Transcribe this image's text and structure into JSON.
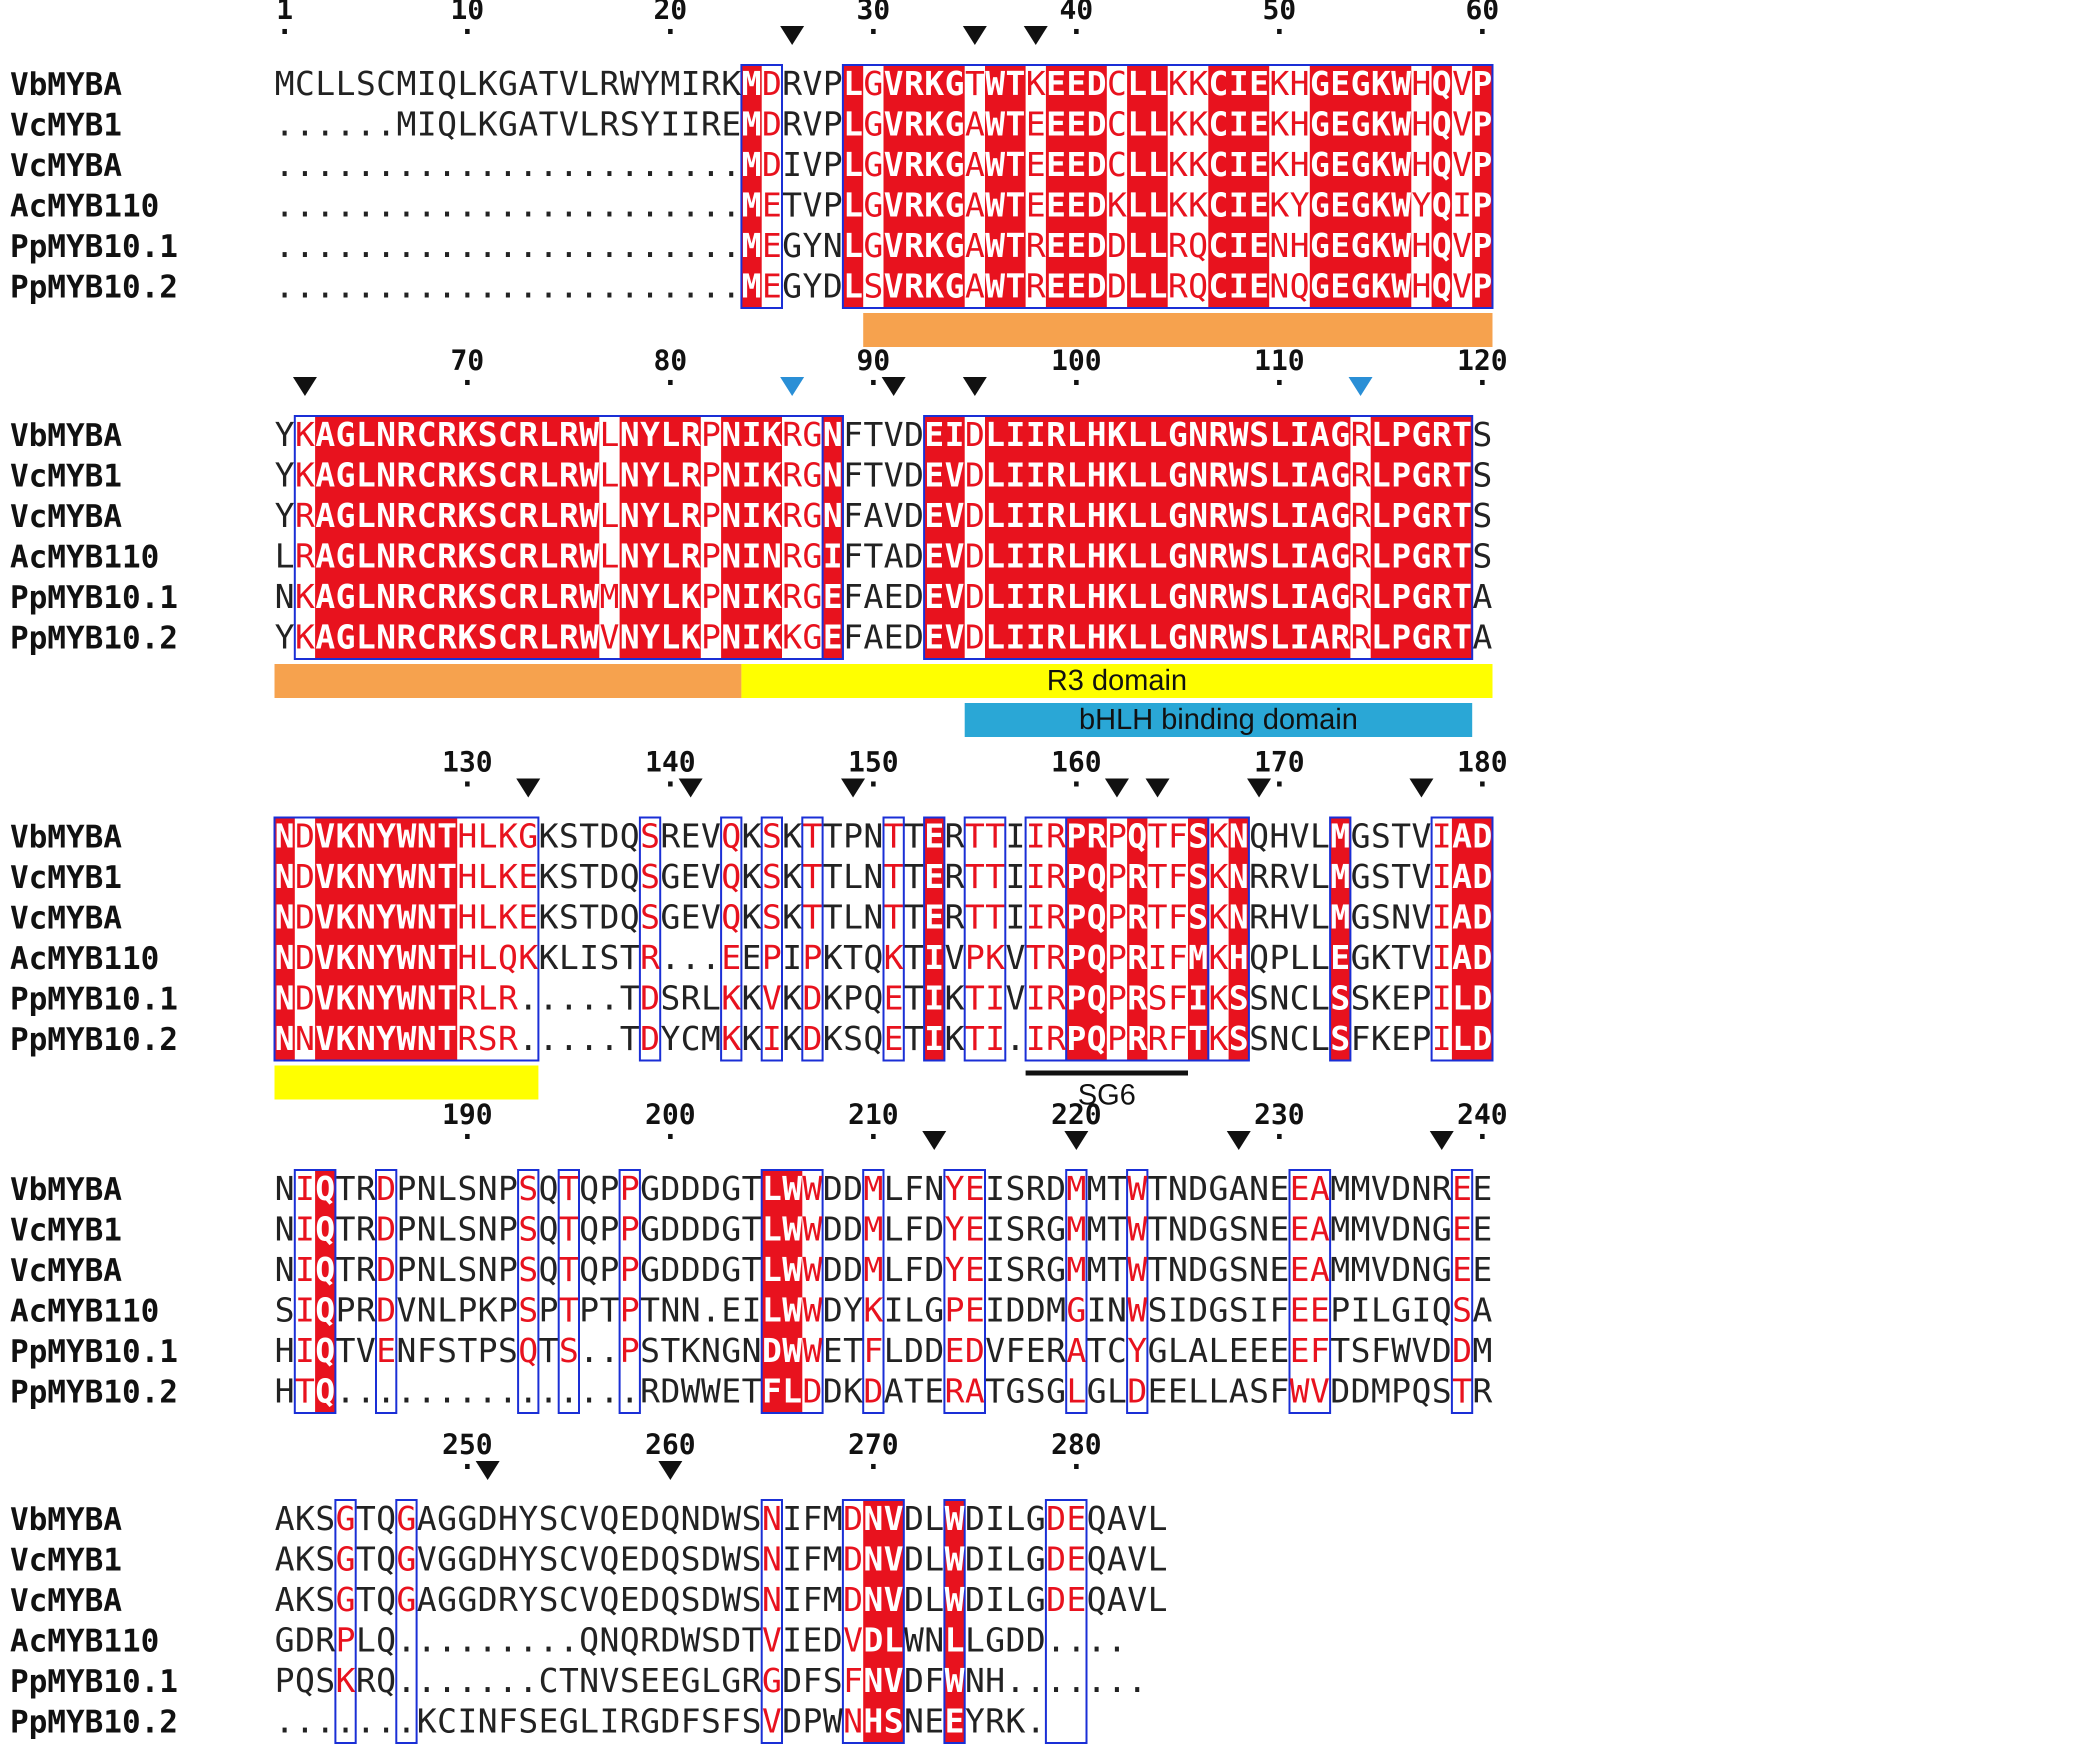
{
  "colors": {
    "conserved_bg": "#e8121e",
    "similar_text": "#e8121e",
    "box": "#1a2fd6",
    "plain_text": "#222222",
    "triangle_black": "#111111",
    "triangle_blue": "#2a8fd6"
  },
  "sequences": [
    {
      "name": "VbMYBA",
      "seq": "MCLLSCMIQLKGATVLRWYMIRKMDRVPLGVRKGTWTKEEDCLLKKCIEKHGEGKWHQVPYKAGLNRCRKSCRLRWLNYLRPNIKRGNFTVDEIDLIIRLHKLLGNRWSLIAGRLPGRTSNDVKNYWNTHLKGKSTDQSREVQKSKTTPNTTERTTIIRPRPQTFSKNQHVLMGSTVIADNIQTRDPNLSNPSQTQPPGDDDGTLWWDDMLFNYEISRDMMTWTNDGANEEAMMVDNREEAKSGTQGAGGDHYSCVQEDQNDWSNIFMDNVDLWDILGDEQAVL"
    },
    {
      "name": "VcMYB1",
      "seq": "......MIQLKGATVLRSYIIREMDRVPLGVRKGAWTEEEDCLLKKCIEKHGEGKWHQVPYKAGLNRCRKSCRLRWLNYLRPNIKRGNFTVDEVDLIIRLHKLLGNRWSLIAGRLPGRTSNDVKNYWNTHLKEKSTDQSGEVQKSKTTLNTTERTTIIRPQPRTFSKNRRVLMGSTVIADNIQTRDPNLSNPSQTQPPGDDDGTLWWDDMLFDYEISRGMMTWTNDGSNEEAMMVDNGEEAKSGTQGVGGDHYSCVQEDQSDWSNIFMDNVDLWDILGDEQAVL"
    },
    {
      "name": "VcMYBA",
      "seq": ".......................MDIVPLGVRKGAWTEEEDCLLKKCIEKHGEGKWHQVPYRAGLNRCRKSCRLRWLNYLRPNIKRGNFAVDEVDLIIRLHKLLGNRWSLIAGRLPGRTSNDVKNYWNTHLKEKSTDQSGEVQKSKTTLNTTERTTIIRPQPRTFSKNRHVLMGSNVIADNIQTRDPNLSNPSQTQPPGDDDGTLWWDDMLFDYEISRGMMTWTNDGSNEEAMMVDNGEEAKSGTQGAGGDRYSCVQEDQSDWSNIFMDNVDLWDILGDEQAVL"
    },
    {
      "name": "AcMYB110",
      "seq": ".......................METVPLGVRKGAWTEEEDKLLKKCIEKYGEGKWYQIPLRAGLNRCRKSCRLRWLNYLRPNINRGIFTADEVDLIIRLHKLLGNRWSLIAGRLPGRTSNDVKNYWNTHLQKKLISTR...EEPIPKTQKTIVPKVTRPQPRIFMKHQPLLEGKTVIADSIQPRDVNLPKPSPTPTPTNN.EILWWDYKILGPEIDDMGINWSIDGSIFEEPILGIQSAGDRPLQ.........QNQRDWSDTVIEDVDLWNLLGDD...."
    },
    {
      "name": "PpMYB10.1",
      "seq": ".......................MEGYNLGVRKGAWTREEDDLLRQCIENHGEGKWHQVPNKAGLNRCRKSCRLRWMNYLKPNIKRGEFAEDEVDLIIRLHKLLGNRWSLIAGRLPGRTANDVKNYWNTRLR.....TDSRLKKVKDKPQETIKTIVIRPQPRSFIKSSNCLSSKEPILDHIQTVENFSTPSQTS..PSTKNGNDWWETFLDDEDVFERATCYGLALEEEEFTSFWVDDMPQSKRQ.......CTNVSEEGLGRGDFSFNVDFWNH......."
    },
    {
      "name": "PpMYB10.2",
      "seq": ".......................MEGYDLSVRKGAWTREEDDLLRQCIENQGEGKWHQVPYKAGLNRCRKSCRLRWVNYLKPNIKKGEFAEDEVDLIIRLHKLLGNRWSLIARRLPGRTANNVKNYWNTRSR.....TDYCMKKIKDKSQETIKTI.IRPQPRRFTKSSNCLSFKEPILDHTQ...............RDWWETFLDDKDATERATGSGLGLDEELLASFWVDDMPQSTR.......KCINFSEGLIRGDFSFSVDPWNHSNEEYRK."
    }
  ],
  "blocks": [
    {
      "start": 1,
      "len": 60,
      "ticks": [
        1,
        10,
        20,
        30,
        40,
        50,
        60
      ],
      "triangles": [
        {
          "pos": 26,
          "c": "black"
        },
        {
          "pos": 35,
          "c": "black"
        },
        {
          "pos": 38,
          "c": "black"
        }
      ],
      "conserved": [
        [
          24,
          24
        ],
        [
          29,
          29
        ],
        [
          31,
          34
        ],
        [
          36,
          37
        ],
        [
          39,
          41
        ],
        [
          43,
          44
        ],
        [
          47,
          49
        ],
        [
          52,
          56
        ],
        [
          58,
          58
        ],
        [
          60,
          60
        ]
      ],
      "boxes": [
        [
          24,
          25
        ],
        [
          29,
          60
        ]
      ],
      "domains": [
        {
          "start": 30,
          "end": 60,
          "color": "#f6a24e",
          "label": "",
          "row": 0
        }
      ]
    },
    {
      "start": 61,
      "len": 60,
      "ticks": [
        70,
        80,
        90,
        100,
        110,
        120
      ],
      "triangles": [
        {
          "pos": 62,
          "c": "black"
        },
        {
          "pos": 86,
          "c": "blue"
        },
        {
          "pos": 91,
          "c": "black"
        },
        {
          "pos": 95,
          "c": "black"
        },
        {
          "pos": 114,
          "c": "blue"
        }
      ],
      "conserved": [
        [
          63,
          76
        ],
        [
          78,
          81
        ],
        [
          83,
          85
        ],
        [
          88,
          88
        ],
        [
          88,
          88
        ],
        [
          93,
          94
        ],
        [
          96,
          113
        ],
        [
          115,
          119
        ]
      ],
      "boxes": [
        [
          62,
          88
        ],
        [
          88,
          88
        ],
        [
          93,
          119
        ]
      ],
      "domains": [
        {
          "start": 61,
          "end": 83,
          "color": "#f6a24e",
          "label": "",
          "row": 0
        },
        {
          "start": 84,
          "end": 120,
          "color": "#ffff00",
          "label": "R3 domain",
          "row": 0
        },
        {
          "start": 95,
          "end": 119,
          "color": "#2aa7d6",
          "label": "bHLH binding domain",
          "row": 1
        }
      ]
    },
    {
      "start": 121,
      "len": 60,
      "ticks": [
        130,
        140,
        150,
        160,
        170,
        180
      ],
      "triangles": [
        {
          "pos": 133,
          "c": "black"
        },
        {
          "pos": 141,
          "c": "black"
        },
        {
          "pos": 149,
          "c": "black"
        },
        {
          "pos": 162,
          "c": "black"
        },
        {
          "pos": 164,
          "c": "black"
        },
        {
          "pos": 169,
          "c": "black"
        },
        {
          "pos": 177,
          "c": "black"
        }
      ],
      "conserved": [
        [
          121,
          121
        ],
        [
          123,
          129
        ],
        [
          153,
          153
        ],
        [
          160,
          161
        ],
        [
          163,
          163
        ],
        [
          166,
          166
        ],
        [
          168,
          168
        ],
        [
          173,
          173
        ],
        [
          179,
          180
        ]
      ],
      "boxes": [
        [
          121,
          133
        ],
        [
          139,
          139
        ],
        [
          143,
          143
        ],
        [
          145,
          145
        ],
        [
          147,
          147
        ],
        [
          151,
          151
        ],
        [
          153,
          153
        ],
        [
          155,
          156
        ],
        [
          158,
          159
        ],
        [
          160,
          166
        ],
        [
          167,
          168
        ],
        [
          173,
          173
        ],
        [
          178,
          180
        ]
      ],
      "domains": [
        {
          "start": 121,
          "end": 133,
          "color": "#ffff00",
          "label": "",
          "row": 0
        }
      ],
      "underline": {
        "start": 158,
        "end": 165,
        "label": "SG6"
      }
    },
    {
      "start": 181,
      "len": 60,
      "ticks": [
        190,
        200,
        210,
        220,
        230,
        240
      ],
      "triangles": [
        {
          "pos": 213,
          "c": "black"
        },
        {
          "pos": 220,
          "c": "black"
        },
        {
          "pos": 228,
          "c": "black"
        },
        {
          "pos": 238,
          "c": "black"
        }
      ],
      "conserved": [
        [
          183,
          183
        ],
        [
          205,
          206
        ]
      ],
      "boxes": [
        [
          182,
          183
        ],
        [
          186,
          186
        ],
        [
          193,
          193
        ],
        [
          195,
          195
        ],
        [
          198,
          198
        ],
        [
          205,
          207
        ],
        [
          210,
          210
        ],
        [
          214,
          215
        ],
        [
          220,
          220
        ],
        [
          223,
          223
        ],
        [
          231,
          232
        ],
        [
          239,
          239
        ]
      ],
      "domains": []
    },
    {
      "start": 241,
      "len": 60,
      "ticks": [
        250,
        260,
        270,
        280
      ],
      "triangles": [
        {
          "pos": 251,
          "c": "black"
        },
        {
          "pos": 260,
          "c": "black"
        }
      ],
      "conserved": [
        [
          270,
          271
        ],
        [
          274,
          274
        ]
      ],
      "boxes": [
        [
          244,
          244
        ],
        [
          247,
          247
        ],
        [
          265,
          265
        ],
        [
          269,
          271
        ],
        [
          274,
          274
        ],
        [
          279,
          280
        ]
      ],
      "domains": []
    }
  ]
}
